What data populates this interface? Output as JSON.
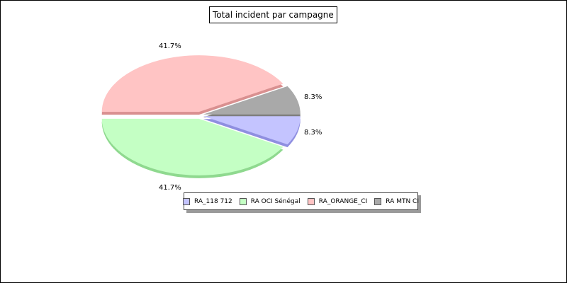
{
  "chart_data": {
    "type": "pie",
    "title": "Total incident par campagne",
    "labels": [
      "RA_118 712",
      "RA OCI Sénégal",
      "RA_ORANGE_CI",
      "RA MTN CI"
    ],
    "values": [
      8.3,
      41.7,
      41.7,
      8.3
    ],
    "value_labels": [
      "8.3%",
      "41.7%",
      "41.7%",
      "8.3%"
    ],
    "colors": [
      "#c4c4ff",
      "#c4ffc4",
      "#ffc4c4",
      "#a9a9a9"
    ],
    "side_colors": [
      "#8f8fe0",
      "#8fd98f",
      "#d99090",
      "#7e7e7e"
    ],
    "start_angle_deg": 0,
    "direction": "clockwise",
    "exploded": true,
    "legend_position": "bottom"
  }
}
